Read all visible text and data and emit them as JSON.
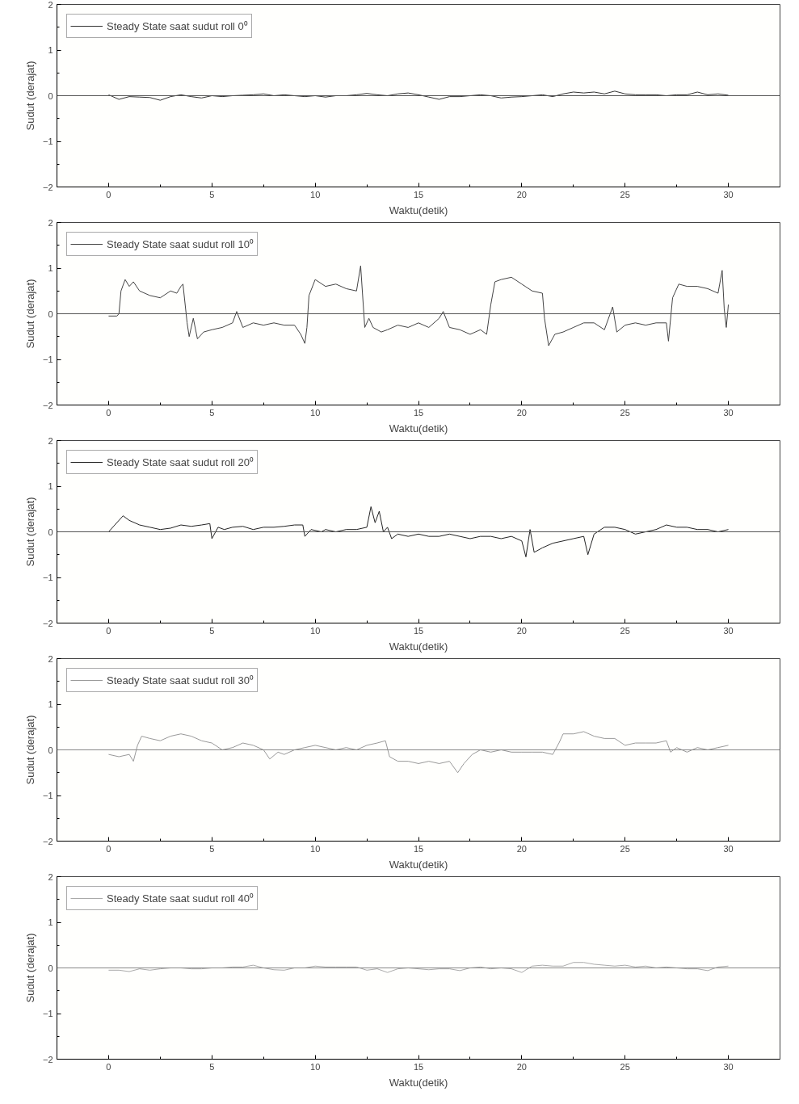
{
  "chart_data": [
    {
      "type": "line",
      "xlabel": "Waktu(detik)",
      "ylabel": "Sudut (derajat)",
      "xlim": [
        -2.5,
        32.5
      ],
      "xticks": [
        0,
        5,
        10,
        15,
        20,
        25,
        30
      ],
      "ylim": [
        -2,
        2
      ],
      "yticks": [
        -2,
        -1,
        0,
        1,
        2
      ],
      "grid": false,
      "legend": "top left",
      "ref_lines": [
        {
          "axis": "y",
          "value": 0,
          "color": "#555555"
        }
      ],
      "series": [
        {
          "name": "Steady State saat sudut roll 0⁰",
          "color": "#333333",
          "x": [
            0,
            0.5,
            1,
            1.5,
            2,
            2.5,
            3,
            3.5,
            4,
            4.5,
            5,
            5.5,
            6,
            6.5,
            7,
            7.5,
            8,
            8.5,
            9,
            9.5,
            10,
            10.5,
            11,
            11.5,
            12,
            12.5,
            13,
            13.5,
            14,
            14.5,
            15,
            15.5,
            16,
            16.5,
            17,
            17.5,
            18,
            18.5,
            19,
            19.5,
            20,
            20.5,
            21,
            21.5,
            22,
            22.5,
            23,
            23.5,
            24,
            24.5,
            25,
            25.5,
            26,
            26.5,
            27,
            27.5,
            28,
            28.5,
            29,
            29.5,
            30
          ],
          "values": [
            0.02,
            -0.08,
            -0.02,
            -0.03,
            -0.04,
            -0.1,
            -0.02,
            0.02,
            -0.02,
            -0.05,
            0,
            -0.02,
            0,
            0.01,
            0.02,
            0.04,
            0,
            0.02,
            0,
            -0.02,
            0,
            -0.03,
            0,
            0,
            0.02,
            0.05,
            0.02,
            0,
            0.04,
            0.06,
            0.02,
            -0.03,
            -0.08,
            -0.02,
            -0.02,
            0,
            0.02,
            0,
            -0.05,
            -0.03,
            -0.02,
            0,
            0.02,
            -0.02,
            0.04,
            0.08,
            0.06,
            0.08,
            0.04,
            0.1,
            0.04,
            0.02,
            0.02,
            0.02,
            0,
            0.02,
            0.02,
            0.08,
            0.02,
            0.04,
            0.01
          ]
        }
      ]
    },
    {
      "type": "line",
      "xlabel": "Waktu(detik)",
      "ylabel": "Sudut (derajat)",
      "xlim": [
        -2.5,
        32.5
      ],
      "xticks": [
        0,
        5,
        10,
        15,
        20,
        25,
        30
      ],
      "ylim": [
        -2,
        2
      ],
      "yticks": [
        -2,
        -1,
        0,
        1,
        2
      ],
      "grid": false,
      "legend": "top left",
      "ref_lines": [
        {
          "axis": "y",
          "value": 0,
          "color": "#555555"
        }
      ],
      "series": [
        {
          "name": "Steady State saat sudut roll 10⁰",
          "color": "#444444",
          "x": [
            0,
            0.4,
            0.5,
            0.6,
            0.8,
            1.0,
            1.2,
            1.5,
            2,
            2.5,
            3,
            3.3,
            3.5,
            3.6,
            3.8,
            3.9,
            4.1,
            4.3,
            4.6,
            5,
            5.5,
            6,
            6.2,
            6.5,
            7,
            7.5,
            8,
            8.5,
            9,
            9.3,
            9.5,
            9.6,
            9.7,
            10,
            10.5,
            11,
            11.5,
            12,
            12.2,
            12.4,
            12.6,
            12.8,
            13.2,
            13.5,
            14,
            14.5,
            15,
            15.5,
            16,
            16.2,
            16.5,
            17,
            17.5,
            18,
            18.3,
            18.5,
            18.7,
            19,
            19.5,
            20,
            20.5,
            21,
            21.1,
            21.3,
            21.6,
            22,
            22.5,
            23,
            23.5,
            24,
            24.4,
            24.6,
            25,
            25.5,
            26,
            26.5,
            27,
            27.1,
            27.3,
            27.6,
            28,
            28.5,
            29,
            29.5,
            29.7,
            29.8,
            29.9,
            30
          ],
          "values": [
            -0.05,
            -0.05,
            0,
            0.5,
            0.75,
            0.6,
            0.7,
            0.5,
            0.4,
            0.35,
            0.5,
            0.45,
            0.6,
            0.65,
            -0.2,
            -0.5,
            -0.1,
            -0.55,
            -0.4,
            -0.35,
            -0.3,
            -0.2,
            0.05,
            -0.3,
            -0.2,
            -0.25,
            -0.2,
            -0.25,
            -0.25,
            -0.45,
            -0.65,
            -0.3,
            0.4,
            0.75,
            0.6,
            0.65,
            0.55,
            0.5,
            1.05,
            -0.3,
            -0.1,
            -0.3,
            -0.4,
            -0.35,
            -0.25,
            -0.3,
            -0.2,
            -0.3,
            -0.1,
            0.05,
            -0.3,
            -0.35,
            -0.45,
            -0.35,
            -0.45,
            0.2,
            0.7,
            0.75,
            0.8,
            0.65,
            0.5,
            0.45,
            -0.1,
            -0.7,
            -0.45,
            -0.4,
            -0.3,
            -0.2,
            -0.2,
            -0.35,
            0.15,
            -0.4,
            -0.25,
            -0.2,
            -0.25,
            -0.2,
            -0.2,
            -0.6,
            0.35,
            0.65,
            0.6,
            0.6,
            0.55,
            0.45,
            0.95,
            0.1,
            -0.3,
            0.2
          ]
        }
      ]
    },
    {
      "type": "line",
      "xlabel": "Waktu(detik)",
      "ylabel": "Sudut (derajat)",
      "xlim": [
        -2.5,
        32.5
      ],
      "xticks": [
        0,
        5,
        10,
        15,
        20,
        25,
        30
      ],
      "ylim": [
        -2,
        2
      ],
      "yticks": [
        -2,
        -1,
        0,
        1,
        2
      ],
      "grid": false,
      "legend": "top left",
      "ref_lines": [
        {
          "axis": "y",
          "value": 0,
          "color": "#555555"
        }
      ],
      "series": [
        {
          "name": "Steady State saat sudut roll 20⁰",
          "color": "#222222",
          "x": [
            0,
            0.3,
            0.7,
            1,
            1.5,
            2,
            2.5,
            3,
            3.5,
            4,
            4.5,
            4.9,
            5,
            5.3,
            5.6,
            6,
            6.5,
            7,
            7.5,
            8,
            8.5,
            9,
            9.4,
            9.5,
            9.8,
            10.3,
            10.5,
            11,
            11.5,
            12,
            12.5,
            12.7,
            12.9,
            13.1,
            13.3,
            13.5,
            13.7,
            14,
            14.5,
            15,
            15.5,
            16,
            16.5,
            17,
            17.5,
            18,
            18.5,
            19,
            19.5,
            20,
            20.2,
            20.4,
            20.6,
            21,
            21.5,
            22,
            22.5,
            23,
            23.2,
            23.5,
            24,
            24.5,
            25,
            25.5,
            26,
            26.5,
            27,
            27.5,
            28,
            28.5,
            29,
            29.5,
            30
          ],
          "values": [
            0,
            0.15,
            0.35,
            0.25,
            0.15,
            0.1,
            0.05,
            0.08,
            0.15,
            0.12,
            0.15,
            0.18,
            -0.15,
            0.1,
            0.05,
            0.1,
            0.12,
            0.05,
            0.1,
            0.1,
            0.12,
            0.15,
            0.15,
            -0.1,
            0.05,
            0,
            0.05,
            0,
            0.05,
            0.05,
            0.1,
            0.55,
            0.2,
            0.45,
            0,
            0.1,
            -0.15,
            -0.05,
            -0.1,
            -0.05,
            -0.1,
            -0.1,
            -0.05,
            -0.1,
            -0.15,
            -0.1,
            -0.1,
            -0.15,
            -0.1,
            -0.2,
            -0.55,
            0.05,
            -0.45,
            -0.35,
            -0.25,
            -0.2,
            -0.15,
            -0.1,
            -0.5,
            -0.05,
            0.1,
            0.1,
            0.05,
            -0.05,
            0,
            0.05,
            0.15,
            0.1,
            0.1,
            0.05,
            0.05,
            0,
            0.05
          ]
        }
      ]
    },
    {
      "type": "line",
      "xlabel": "Waktu(detik)",
      "ylabel": "Sudut (derajat)",
      "xlim": [
        -2.5,
        32.5
      ],
      "xticks": [
        0,
        5,
        10,
        15,
        20,
        25,
        30
      ],
      "ylim": [
        -2,
        2
      ],
      "yticks": [
        -2,
        -1,
        0,
        1,
        2
      ],
      "grid": false,
      "legend": "top left",
      "ref_lines": [
        {
          "axis": "y",
          "value": 0,
          "color": "#888888"
        }
      ],
      "series": [
        {
          "name": "Steady State saat sudut roll 30⁰",
          "color": "#999999",
          "x": [
            0,
            0.5,
            1,
            1.2,
            1.4,
            1.6,
            2,
            2.5,
            3,
            3.5,
            4,
            4.5,
            5,
            5.5,
            6,
            6.5,
            7,
            7.5,
            7.8,
            8.2,
            8.5,
            9,
            9.5,
            10,
            10.5,
            11,
            11.5,
            12,
            12.5,
            13,
            13.4,
            13.6,
            14,
            14.5,
            15,
            15.5,
            16,
            16.5,
            16.9,
            17.2,
            17.6,
            18,
            18.5,
            19,
            19.5,
            20,
            20.5,
            21,
            21.5,
            21.8,
            22,
            22.5,
            23,
            23.5,
            24,
            24.5,
            25,
            25.5,
            26,
            26.5,
            27,
            27.2,
            27.5,
            28,
            28.5,
            29,
            29.5,
            30
          ],
          "values": [
            -0.1,
            -0.15,
            -0.1,
            -0.25,
            0.1,
            0.3,
            0.25,
            0.2,
            0.3,
            0.35,
            0.3,
            0.2,
            0.15,
            0,
            0.05,
            0.15,
            0.1,
            0,
            -0.2,
            -0.05,
            -0.1,
            0,
            0.05,
            0.1,
            0.05,
            0,
            0.05,
            0,
            0.1,
            0.15,
            0.2,
            -0.15,
            -0.25,
            -0.25,
            -0.3,
            -0.25,
            -0.3,
            -0.25,
            -0.5,
            -0.3,
            -0.1,
            0,
            -0.05,
            0,
            -0.05,
            -0.05,
            -0.05,
            -0.05,
            -0.1,
            0.15,
            0.35,
            0.35,
            0.4,
            0.3,
            0.25,
            0.25,
            0.1,
            0.15,
            0.15,
            0.15,
            0.2,
            -0.05,
            0.05,
            -0.05,
            0.05,
            0,
            0.05,
            0.1
          ]
        }
      ]
    },
    {
      "type": "line",
      "xlabel": "Waktu(detik)",
      "ylabel": "Sudut (derajat)",
      "xlim": [
        -2.5,
        32.5
      ],
      "xticks": [
        0,
        5,
        10,
        15,
        20,
        25,
        30
      ],
      "ylim": [
        -2,
        2
      ],
      "yticks": [
        -2,
        -1,
        0,
        1,
        2
      ],
      "grid": false,
      "legend": "top left",
      "ref_lines": [
        {
          "axis": "y",
          "value": 0,
          "color": "#888888"
        }
      ],
      "series": [
        {
          "name": "Steady State saat sudut roll 40⁰",
          "color": "#aaaaaa",
          "x": [
            0,
            0.5,
            1,
            1.5,
            2,
            2.5,
            3,
            3.5,
            4,
            4.5,
            5,
            5.5,
            6,
            6.5,
            7,
            7.5,
            8,
            8.5,
            9,
            9.5,
            10,
            10.5,
            11,
            11.5,
            12,
            12.5,
            13,
            13.5,
            14,
            14.5,
            15,
            15.5,
            16,
            16.5,
            17,
            17.5,
            18,
            18.5,
            19,
            19.5,
            20,
            20.5,
            21,
            21.5,
            22,
            22.5,
            23,
            23.5,
            24,
            24.5,
            25,
            25.5,
            26,
            26.5,
            27,
            27.5,
            28,
            28.5,
            29,
            29.5,
            30
          ],
          "values": [
            -0.05,
            -0.05,
            -0.08,
            -0.02,
            -0.05,
            -0.02,
            0,
            0,
            -0.02,
            -0.02,
            0,
            0,
            0.02,
            0.02,
            0.06,
            0,
            -0.04,
            -0.05,
            0,
            0,
            0.04,
            0.02,
            0.02,
            0.02,
            0.02,
            -0.05,
            -0.02,
            -0.1,
            -0.02,
            0,
            -0.02,
            -0.04,
            -0.02,
            -0.02,
            -0.06,
            0,
            0.02,
            -0.02,
            0,
            -0.02,
            -0.1,
            0.04,
            0.06,
            0.04,
            0.04,
            0.12,
            0.12,
            0.08,
            0.06,
            0.04,
            0.06,
            0.02,
            0.04,
            0,
            0.02,
            0,
            -0.02,
            -0.02,
            -0.06,
            0.02,
            0.04
          ]
        }
      ]
    }
  ]
}
